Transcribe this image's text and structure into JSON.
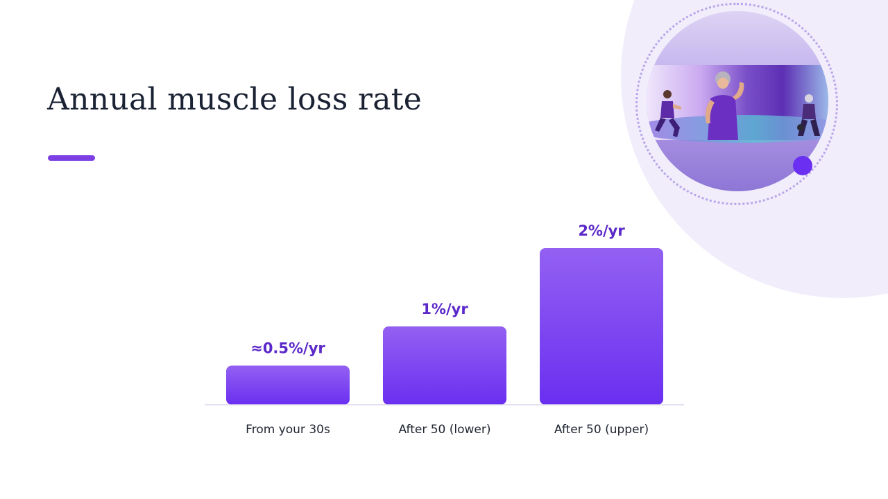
{
  "slide": {
    "title": "Annual muscle loss rate"
  },
  "colors": {
    "accent": "#7b3fe4",
    "bar_top": "#9360f2",
    "bar_bottom": "#6a2ff0",
    "value_label": "#5b28c9",
    "background_blob": "#f1edfb"
  },
  "illustration": {
    "icon": "fitness-women-photo-icon"
  },
  "chart_data": {
    "type": "bar",
    "categories": [
      "From your 30s",
      "After 50 (lower)",
      "After 50 (upper)"
    ],
    "values": [
      0.5,
      1,
      2
    ],
    "value_labels": [
      "≈0.5%/yr",
      "1%/yr",
      "2%/yr"
    ],
    "ylim": [
      0,
      2
    ],
    "grid": false,
    "legend": "none",
    "xlabel": "",
    "ylabel": ""
  }
}
